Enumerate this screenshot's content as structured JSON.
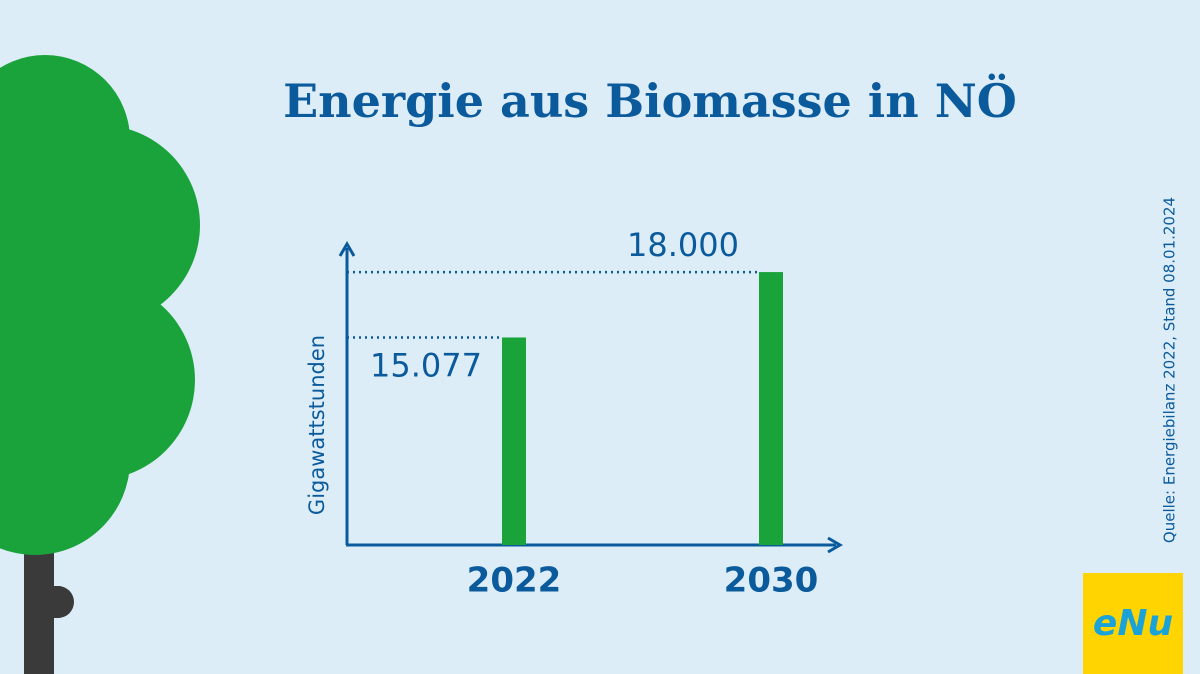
{
  "chart_data": {
    "type": "bar",
    "title": "Energie aus Biomasse in NÖ",
    "y_label": "Gigawattstunden",
    "categories": [
      "2022",
      "2030"
    ],
    "values": [
      15077,
      18000
    ],
    "value_labels": [
      "15.077",
      "18.000"
    ],
    "color": "#1aa33a",
    "ylim": [
      5800,
      19300
    ],
    "source": "Quelle: Energiebilanz 2022, Stand 08.01.2024",
    "logo": "eNu"
  }
}
